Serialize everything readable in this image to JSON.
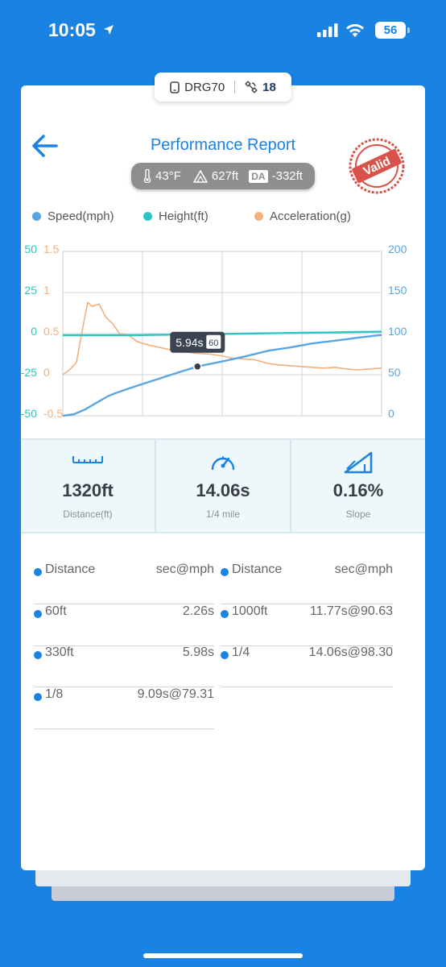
{
  "status_bar": {
    "time": "10:05",
    "battery": "56"
  },
  "device": {
    "name": "DRG70",
    "satellites": "18"
  },
  "header": {
    "title": "Performance Report",
    "temperature": "43°F",
    "elevation": "627ft",
    "da_label": "DA",
    "density_altitude": "-332ft",
    "stamp": "Valid"
  },
  "legend": [
    {
      "label": "Speed(mph)",
      "color": "#5aa6e0"
    },
    {
      "label": "Height(ft)",
      "color": "#2ec4c4"
    },
    {
      "label": "Acceleration(g)",
      "color": "#f2b07e"
    }
  ],
  "chart_data": {
    "type": "line",
    "x_range_seconds": [
      0,
      14.06
    ],
    "axes": {
      "height_left": {
        "ticks": [
          "50",
          "25",
          "0",
          "-25",
          "-50"
        ],
        "range": [
          -50,
          50
        ],
        "color": "#2ec4c4"
      },
      "accel_left": {
        "ticks": [
          "1.5",
          "1",
          "0.5",
          "0",
          "-0.5"
        ],
        "range": [
          -0.5,
          1.5
        ],
        "color": "#f2b07e"
      },
      "speed_right": {
        "ticks": [
          "200",
          "150",
          "100",
          "50",
          "0"
        ],
        "range": [
          0,
          200
        ],
        "color": "#5aa6e0"
      }
    },
    "grid": true,
    "series": [
      {
        "name": "Speed(mph)",
        "axis": "speed_right",
        "x": [
          0,
          0.5,
          1,
          1.5,
          2,
          2.26,
          3,
          4,
          5,
          5.94,
          7,
          8,
          9.09,
          10,
          11,
          11.77,
          12.5,
          13,
          14.06
        ],
        "y": [
          0,
          2,
          8,
          16,
          24,
          27,
          34,
          43,
          52,
          60,
          66,
          72,
          79.31,
          83,
          88,
          90.63,
          93,
          95,
          98.3
        ]
      },
      {
        "name": "Height(ft)",
        "axis": "height_left",
        "x": [
          0,
          1,
          2,
          3,
          4,
          5,
          6,
          7,
          8,
          9,
          10,
          11,
          12,
          13,
          14.06
        ],
        "y": [
          -1,
          -1,
          -1,
          -1,
          -0.8,
          -0.6,
          -0.4,
          -0.2,
          0,
          0.2,
          0.4,
          0.6,
          0.8,
          1,
          1.2
        ]
      },
      {
        "name": "Acceleration(g)",
        "axis": "accel_left",
        "x": [
          0,
          0.3,
          0.6,
          0.9,
          1.1,
          1.3,
          1.6,
          1.9,
          2.2,
          2.5,
          2.9,
          3.3,
          3.8,
          4.3,
          4.8,
          5.3,
          5.9,
          6.5,
          7,
          7.5,
          8,
          8.5,
          9,
          9.5,
          10,
          10.5,
          11,
          11.5,
          12,
          12.5,
          13,
          13.5,
          14.06
        ],
        "y": [
          0,
          0.06,
          0.15,
          0.6,
          0.88,
          0.83,
          0.86,
          0.7,
          0.62,
          0.5,
          0.48,
          0.4,
          0.36,
          0.33,
          0.3,
          0.28,
          0.26,
          0.25,
          0.23,
          0.2,
          0.19,
          0.18,
          0.14,
          0.12,
          0.11,
          0.1,
          0.09,
          0.08,
          0.09,
          0.07,
          0.06,
          0.07,
          0.08
        ]
      }
    ],
    "marker": {
      "time": "5.94s",
      "speed": "60"
    }
  },
  "stats": [
    {
      "value": "1320ft",
      "label": "Distance(ft)",
      "icon": "ruler-icon"
    },
    {
      "value": "14.06s",
      "label": "1/4 mile",
      "icon": "speedometer-icon"
    },
    {
      "value": "0.16%",
      "label": "Slope",
      "icon": "slope-icon"
    }
  ],
  "splits": {
    "header": {
      "label": "Distance",
      "value": "sec@mph"
    },
    "left": [
      {
        "label": "60ft",
        "value": "2.26s"
      },
      {
        "label": "330ft",
        "value": "5.98s"
      },
      {
        "label": "1/8",
        "value": "9.09s@79.31"
      }
    ],
    "right": [
      {
        "label": "1000ft",
        "value": "11.77s@90.63"
      },
      {
        "label": "1/4",
        "value": "14.06s@98.30"
      }
    ]
  }
}
